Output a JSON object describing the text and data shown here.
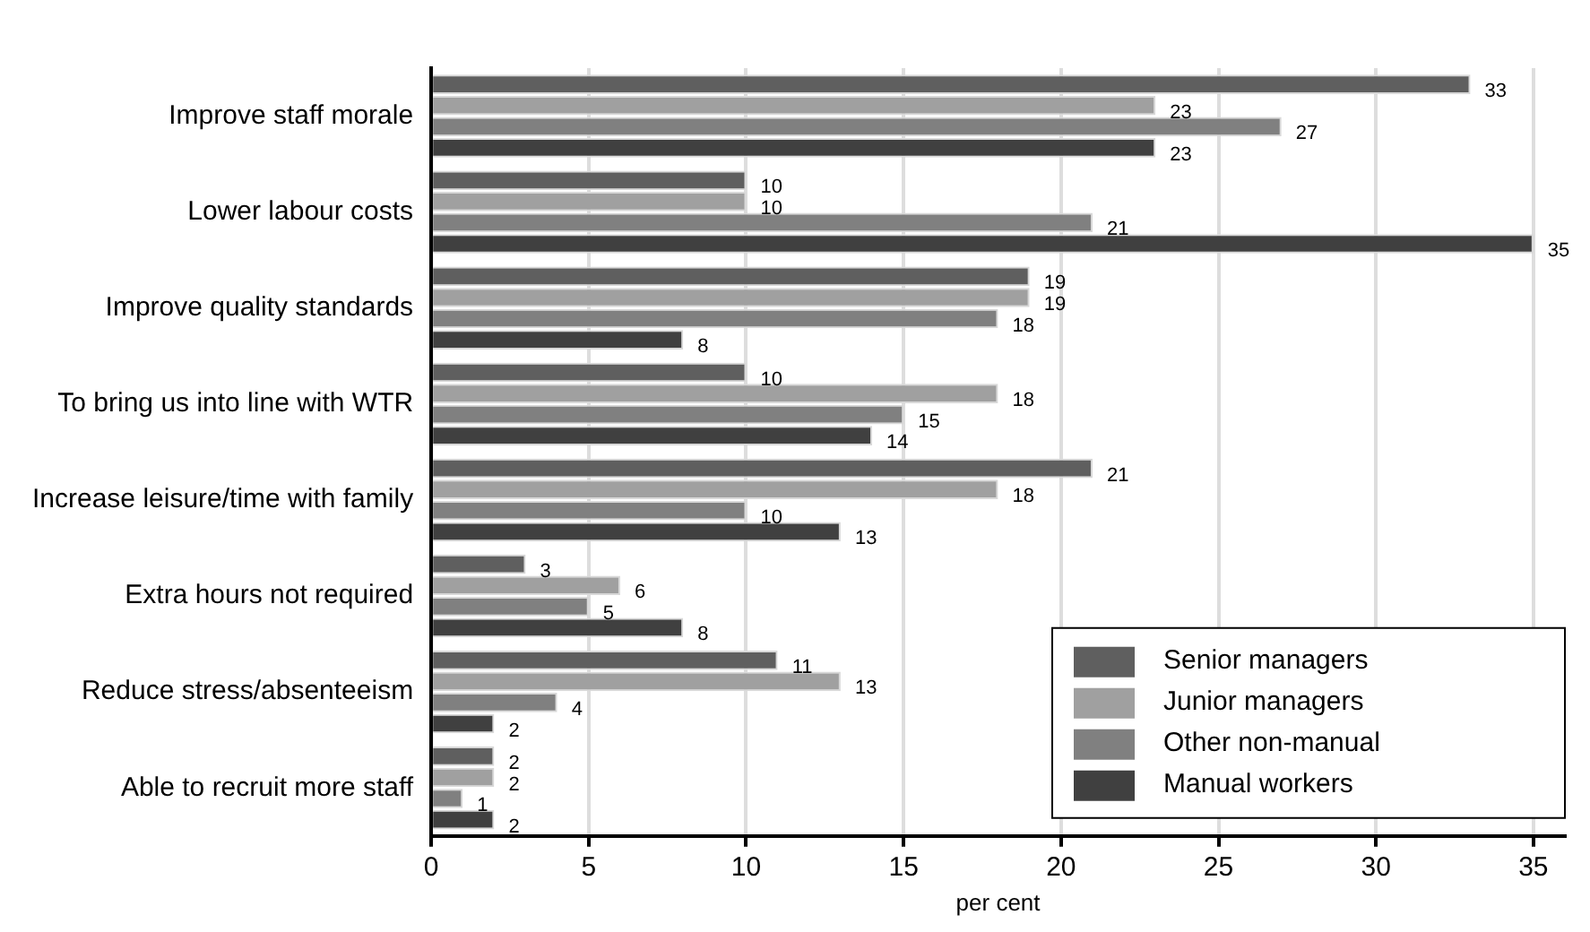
{
  "chart_data": {
    "type": "bar",
    "orientation": "horizontal",
    "xlabel": "per cent",
    "categories": [
      "Improve staff morale",
      "Lower labour costs",
      "Improve quality standards",
      "To bring us into line with WTR",
      "Increase leisure/time with family",
      "Extra hours not required",
      "Reduce stress/absenteeism",
      "Able to recruit more staff"
    ],
    "series": [
      {
        "name": "Senior managers",
        "color": "#5f5f5f",
        "values": [
          33,
          10,
          19,
          10,
          21,
          3,
          11,
          2
        ]
      },
      {
        "name": "Junior managers",
        "color": "#a0a0a0",
        "values": [
          23,
          10,
          19,
          18,
          18,
          6,
          13,
          2
        ]
      },
      {
        "name": "Other non-manual",
        "color": "#808080",
        "values": [
          27,
          21,
          18,
          15,
          10,
          5,
          4,
          1
        ]
      },
      {
        "name": "Manual workers",
        "color": "#404040",
        "values": [
          23,
          35,
          8,
          14,
          13,
          8,
          2,
          2
        ]
      }
    ],
    "xlim": [
      0,
      36
    ],
    "xticks": [
      0,
      5,
      10,
      15,
      20,
      25,
      30,
      35
    ],
    "grid": "x",
    "legend": "bottom right",
    "data_labels": true
  }
}
